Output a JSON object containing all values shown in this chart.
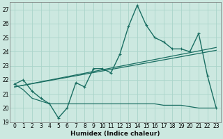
{
  "xlabel": "Humidex (Indice chaleur)",
  "xlim": [
    -0.5,
    23.5
  ],
  "ylim": [
    19,
    27.5
  ],
  "yticks": [
    19,
    20,
    21,
    22,
    23,
    24,
    25,
    26,
    27
  ],
  "xticks": [
    0,
    1,
    2,
    3,
    4,
    5,
    6,
    7,
    8,
    9,
    10,
    11,
    12,
    13,
    14,
    15,
    16,
    17,
    18,
    19,
    20,
    21,
    22,
    23
  ],
  "background_color": "#cce8e0",
  "grid_color": "#aad4ca",
  "line_color": "#1a6e62",
  "series_main": {
    "x": [
      0,
      1,
      2,
      3,
      4,
      5,
      6,
      7,
      8,
      9,
      10,
      11,
      12,
      13,
      14,
      15,
      16,
      17,
      18,
      19,
      20,
      21,
      22,
      23
    ],
    "y": [
      21.7,
      22.0,
      21.2,
      20.7,
      20.3,
      19.3,
      20.0,
      21.8,
      21.5,
      22.8,
      22.8,
      22.5,
      23.8,
      25.8,
      27.3,
      25.9,
      25.0,
      24.7,
      24.2,
      24.2,
      24.0,
      25.3,
      22.3,
      20.0
    ]
  },
  "series_flat": {
    "x": [
      0,
      1,
      2,
      3,
      4,
      5,
      6,
      7,
      8,
      9,
      10,
      11,
      12,
      13,
      14,
      15,
      16,
      17,
      18,
      19,
      20,
      21,
      22,
      23
    ],
    "y": [
      21.7,
      21.3,
      20.7,
      20.5,
      20.3,
      20.3,
      20.3,
      20.3,
      20.3,
      20.3,
      20.3,
      20.3,
      20.3,
      20.3,
      20.3,
      20.3,
      20.3,
      20.2,
      20.2,
      20.2,
      20.1,
      20.0,
      20.0,
      20.0
    ]
  },
  "trend1": {
    "x": [
      0,
      23
    ],
    "y": [
      21.5,
      24.3
    ]
  },
  "trend2": {
    "x": [
      0,
      23
    ],
    "y": [
      21.5,
      24.1
    ]
  }
}
